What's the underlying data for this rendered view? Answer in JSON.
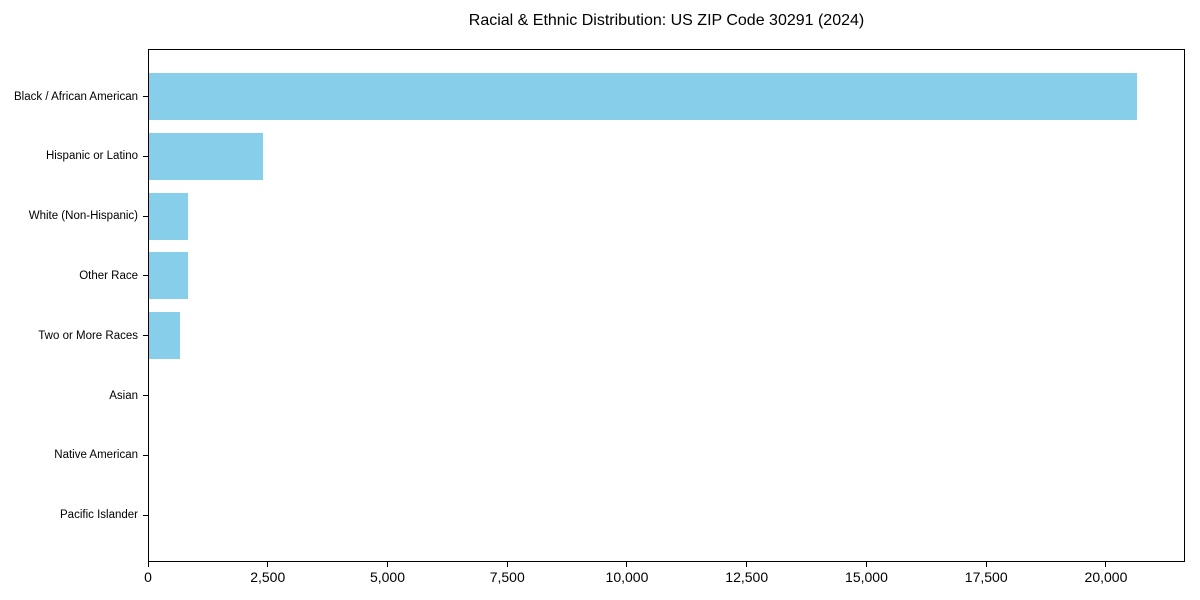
{
  "chart_data": {
    "type": "bar",
    "orientation": "horizontal",
    "title": "Racial & Ethnic Distribution: US ZIP Code 30291 (2024)",
    "xlabel": "",
    "ylabel": "",
    "grid": false,
    "legend": null,
    "background_color": "#ffffff",
    "bar_color": "#87CEEB",
    "spine_color": "#000000",
    "text_color": "#000000",
    "categories": [
      "Black / African American",
      "Hispanic or Latino",
      "White (Non-Hispanic)",
      "Other Race",
      "Two or More Races",
      "Asian",
      "Native American",
      "Pacific Islander"
    ],
    "values": [
      20620,
      2390,
      820,
      815,
      640,
      0,
      0,
      0
    ],
    "xlim": [
      0,
      21650
    ],
    "x_ticks": [
      {
        "value": 0,
        "label": "0"
      },
      {
        "value": 2500,
        "label": "2,500"
      },
      {
        "value": 5000,
        "label": "5,000"
      },
      {
        "value": 7500,
        "label": "7,500"
      },
      {
        "value": 10000,
        "label": "10,000"
      },
      {
        "value": 12500,
        "label": "12,500"
      },
      {
        "value": 15000,
        "label": "15,000"
      },
      {
        "value": 17500,
        "label": "17,500"
      },
      {
        "value": 20000,
        "label": "20,000"
      }
    ]
  }
}
